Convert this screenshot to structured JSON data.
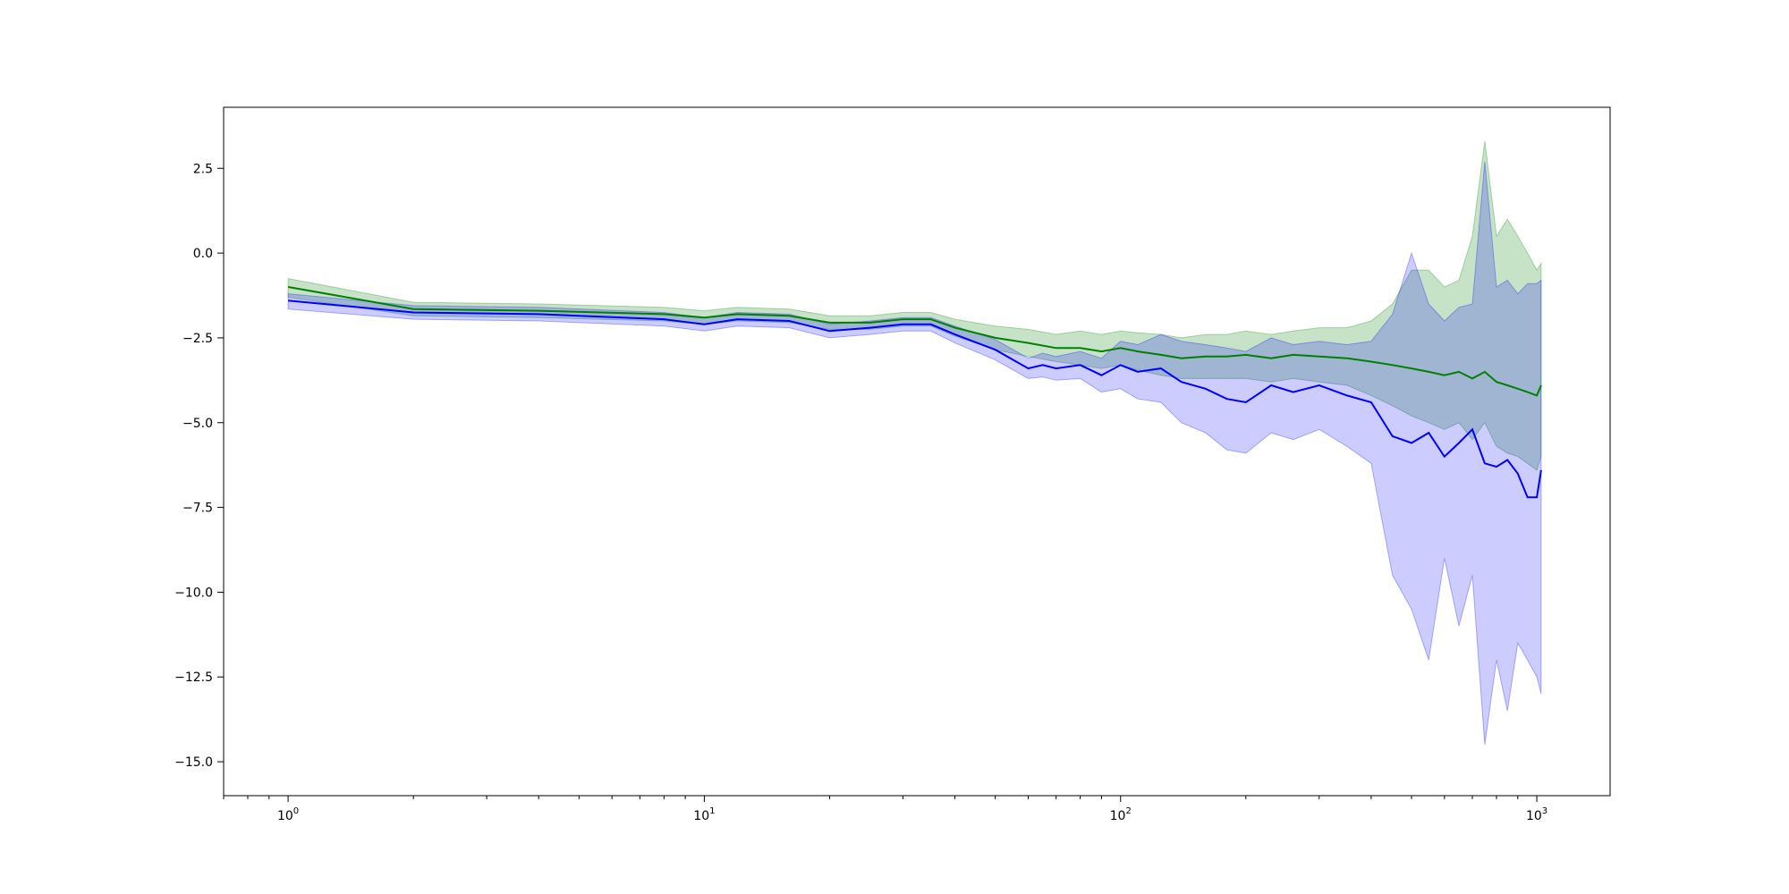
{
  "chart_data": {
    "type": "line",
    "title": "",
    "xlabel": "",
    "ylabel": "",
    "x_scale": "log",
    "xlim": [
      0.7,
      1500
    ],
    "ylim": [
      -16,
      4.3
    ],
    "grid": false,
    "legend": "none",
    "x_ticks": [
      {
        "value": 1,
        "base": "10",
        "exp": "0"
      },
      {
        "value": 10,
        "base": "10",
        "exp": "1"
      },
      {
        "value": 100,
        "base": "10",
        "exp": "2"
      },
      {
        "value": 1000,
        "base": "10",
        "exp": "3"
      }
    ],
    "y_ticks": [
      {
        "value": 2.5,
        "label": "2.5"
      },
      {
        "value": 0,
        "label": "0.0"
      },
      {
        "value": -2.5,
        "label": "−2.5"
      },
      {
        "value": -5,
        "label": "−5.0"
      },
      {
        "value": -7.5,
        "label": "−7.5"
      },
      {
        "value": -10,
        "label": "−10.0"
      },
      {
        "value": -12.5,
        "label": "−12.5"
      },
      {
        "value": -15,
        "label": "−15.0"
      }
    ],
    "series": [
      {
        "color": "#008000",
        "band_color": "#008000",
        "band_opacity": 0.22,
        "x": [
          1,
          2,
          4,
          8,
          10,
          12,
          16,
          20,
          25,
          30,
          35,
          40,
          50,
          60,
          70,
          80,
          90,
          100,
          110,
          125,
          140,
          160,
          180,
          200,
          230,
          260,
          300,
          350,
          400,
          450,
          500,
          550,
          600,
          650,
          700,
          750,
          800,
          850,
          900,
          950,
          1000,
          1024
        ],
        "y": [
          -1.0,
          -1.65,
          -1.7,
          -1.8,
          -1.9,
          -1.8,
          -1.85,
          -2.05,
          -2.05,
          -1.95,
          -1.95,
          -2.2,
          -2.5,
          -2.65,
          -2.8,
          -2.8,
          -2.9,
          -2.8,
          -2.9,
          -3.0,
          -3.1,
          -3.05,
          -3.05,
          -3.0,
          -3.1,
          -3.0,
          -3.05,
          -3.1,
          -3.2,
          -3.3,
          -3.4,
          -3.5,
          -3.6,
          -3.5,
          -3.7,
          -3.5,
          -3.8,
          -3.9,
          -4.0,
          -4.1,
          -4.2,
          -3.9
        ],
        "lower": [
          -1.3,
          -1.85,
          -1.9,
          -2.0,
          -2.1,
          -2.0,
          -2.05,
          -2.25,
          -2.25,
          -2.15,
          -2.15,
          -2.45,
          -2.85,
          -3.05,
          -3.2,
          -3.3,
          -3.4,
          -3.3,
          -3.45,
          -3.6,
          -3.7,
          -3.7,
          -3.7,
          -3.7,
          -3.8,
          -3.7,
          -3.8,
          -3.9,
          -4.2,
          -4.5,
          -4.8,
          -5.0,
          -5.2,
          -5.0,
          -5.5,
          -5.0,
          -5.7,
          -5.9,
          -6.0,
          -6.2,
          -6.4,
          -6.0
        ],
        "upper": [
          -0.75,
          -1.45,
          -1.5,
          -1.6,
          -1.7,
          -1.6,
          -1.65,
          -1.85,
          -1.85,
          -1.75,
          -1.75,
          -1.95,
          -2.15,
          -2.25,
          -2.4,
          -2.3,
          -2.4,
          -2.3,
          -2.35,
          -2.4,
          -2.5,
          -2.4,
          -2.4,
          -2.3,
          -2.4,
          -2.3,
          -2.2,
          -2.2,
          -2.0,
          -1.5,
          -0.5,
          -0.5,
          -1.0,
          -0.8,
          0.5,
          3.3,
          0.5,
          1.0,
          0.5,
          0.0,
          -0.5,
          -0.3
        ]
      },
      {
        "color": "#0000ff",
        "band_color": "#0000ff",
        "band_opacity": 0.2,
        "x": [
          1,
          2,
          4,
          8,
          10,
          12,
          16,
          20,
          25,
          30,
          35,
          40,
          50,
          60,
          65,
          70,
          80,
          90,
          100,
          110,
          125,
          140,
          160,
          180,
          200,
          230,
          260,
          300,
          350,
          400,
          450,
          500,
          550,
          600,
          650,
          700,
          750,
          800,
          850,
          900,
          950,
          1000,
          1024
        ],
        "y": [
          -1.4,
          -1.75,
          -1.8,
          -1.95,
          -2.1,
          -1.95,
          -2.0,
          -2.3,
          -2.2,
          -2.1,
          -2.1,
          -2.4,
          -2.85,
          -3.4,
          -3.3,
          -3.4,
          -3.3,
          -3.6,
          -3.3,
          -3.5,
          -3.4,
          -3.8,
          -4.0,
          -4.3,
          -4.4,
          -3.9,
          -4.1,
          -3.9,
          -4.2,
          -4.4,
          -5.4,
          -5.6,
          -5.3,
          -6.0,
          -5.6,
          -5.2,
          -6.2,
          -6.3,
          -6.1,
          -6.5,
          -7.2,
          -7.2,
          -6.4
        ],
        "lower": [
          -1.65,
          -1.95,
          -2.0,
          -2.15,
          -2.3,
          -2.15,
          -2.2,
          -2.5,
          -2.4,
          -2.3,
          -2.3,
          -2.65,
          -3.15,
          -3.7,
          -3.65,
          -3.75,
          -3.7,
          -4.1,
          -4.0,
          -4.3,
          -4.4,
          -5.0,
          -5.3,
          -5.8,
          -5.9,
          -5.3,
          -5.5,
          -5.2,
          -5.7,
          -6.2,
          -9.5,
          -10.5,
          -12.0,
          -9.0,
          -11.0,
          -9.5,
          -14.5,
          -12.0,
          -13.5,
          -11.5,
          -12.0,
          -12.5,
          -13.0
        ],
        "upper": [
          -1.2,
          -1.55,
          -1.6,
          -1.75,
          -1.9,
          -1.75,
          -1.8,
          -2.1,
          -2.0,
          -1.9,
          -1.9,
          -2.15,
          -2.55,
          -3.1,
          -2.95,
          -3.05,
          -2.9,
          -3.1,
          -2.6,
          -2.7,
          -2.4,
          -2.6,
          -2.7,
          -2.8,
          -2.9,
          -2.5,
          -2.7,
          -2.6,
          -2.7,
          -2.6,
          -1.8,
          0.0,
          -1.5,
          -2.0,
          -1.6,
          -1.5,
          2.7,
          -1.0,
          -0.8,
          -1.2,
          -0.9,
          -0.9,
          -0.8
        ]
      }
    ]
  }
}
